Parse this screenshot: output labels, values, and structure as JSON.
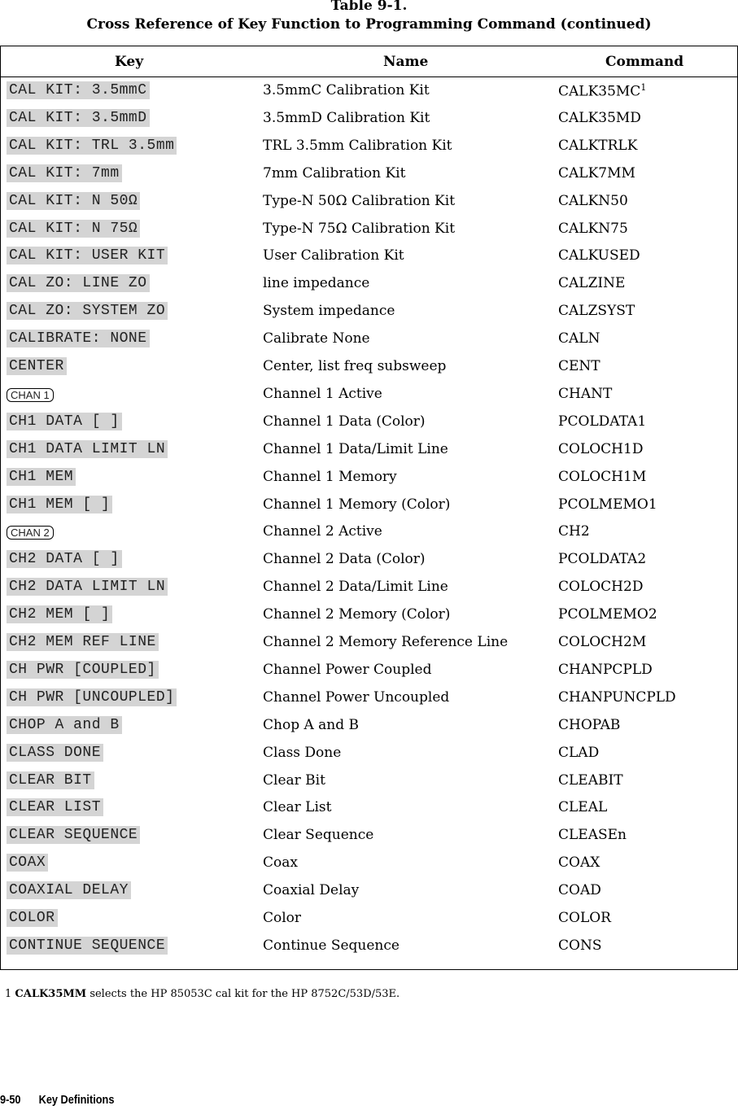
{
  "table": {
    "number": "Table 9-1.",
    "caption": "Cross Reference of Key Function to Programming Command (continued)",
    "headers": {
      "key": "Key",
      "name": "Name",
      "command": "Command"
    },
    "rows": [
      {
        "key": "CAL KIT: 3.5mmC",
        "name": "3.5mmC Calibration Kit",
        "command": "CALK35MC",
        "sup": "1"
      },
      {
        "key": "CAL KIT: 3.5mmD",
        "name": "3.5mmD Calibration Kit",
        "command": "CALK35MD"
      },
      {
        "key": "CAL KIT: TRL 3.5mm",
        "name": "TRL 3.5mm Calibration Kit",
        "command": "CALKTRLK"
      },
      {
        "key": "CAL KIT: 7mm",
        "name": "7mm Calibration Kit",
        "command": "CALK7MM"
      },
      {
        "key": "CAL KIT: N 50Ω",
        "name": "Type-N 50Ω Calibration Kit",
        "command": "CALKN50"
      },
      {
        "key": "CAL KIT: N 75Ω",
        "name": "Type-N 75Ω Calibration Kit",
        "command": "CALKN75"
      },
      {
        "key": "CAL KIT: USER KIT",
        "name": "User Calibration Kit",
        "command": "CALKUSED"
      },
      {
        "key": "CAL ZO: LINE ZO",
        "name": "line impedance",
        "command": "CALZINE"
      },
      {
        "key": "CAL ZO: SYSTEM ZO",
        "name": "System impedance",
        "command": "CALZSYST"
      },
      {
        "key": "CALIBRATE: NONE",
        "name": "Calibrate None",
        "command": "CALN"
      },
      {
        "key": "CENTER",
        "name": "Center, list freq subsweep",
        "command": "CENT"
      },
      {
        "key": "CHAN 1",
        "hard": true,
        "name": "Channel 1 Active",
        "command": "CHANT"
      },
      {
        "key": "CH1 DATA [ ]",
        "name": "Channel 1 Data (Color)",
        "command": "PCOLDATA1"
      },
      {
        "key": "CH1 DATA LIMIT LN",
        "name": "Channel 1 Data/Limit Line",
        "command": "COLOCH1D"
      },
      {
        "key": "CH1 MEM",
        "name": "Channel 1 Memory",
        "command": "COLOCH1M"
      },
      {
        "key": "CH1 MEM [ ]",
        "name": "Channel 1 Memory (Color)",
        "command": "PCOLMEMO1"
      },
      {
        "key": "CHAN 2",
        "hard": true,
        "name": "Channel 2 Active",
        "command": "CH2"
      },
      {
        "key": "CH2 DATA [ ]",
        "name": "Channel 2 Data (Color)",
        "command": "PCOLDATA2"
      },
      {
        "key": "CH2 DATA LIMIT LN",
        "name": "Channel 2 Data/Limit Line",
        "command": "COLOCH2D"
      },
      {
        "key": "CH2 MEM [ ]",
        "name": "Channel 2 Memory (Color)",
        "command": "PCOLMEMO2"
      },
      {
        "key": "CH2 MEM REF LINE",
        "name": "Channel 2 Memory Reference Line",
        "command": "COLOCH2M"
      },
      {
        "key": "CH PWR [COUPLED]",
        "name": "Channel Power Coupled",
        "command": "CHANPCPLD"
      },
      {
        "key": "CH PWR [UNCOUPLED]",
        "name": "Channel Power Uncoupled",
        "command": "CHANPUNCPLD"
      },
      {
        "key": "CHOP A and B",
        "name": "Chop A and B",
        "command": "CHOPAB"
      },
      {
        "key": "CLASS DONE",
        "name": "Class Done",
        "command": "CLAD"
      },
      {
        "key": "CLEAR BIT",
        "name": "Clear Bit",
        "command": "CLEABIT"
      },
      {
        "key": "CLEAR LIST",
        "name": "Clear List",
        "command": "CLEAL"
      },
      {
        "key": "CLEAR SEQUENCE",
        "name": "Clear Sequence",
        "command": "CLEASEn"
      },
      {
        "key": "COAX",
        "name": "Coax",
        "command": "COAX"
      },
      {
        "key": "COAXIAL DELAY",
        "name": "Coaxial Delay",
        "command": "COAD"
      },
      {
        "key": "COLOR",
        "name": "Color",
        "command": "COLOR"
      },
      {
        "key": "CONTINUE SEQUENCE",
        "name": "Continue Sequence",
        "command": "CONS"
      }
    ]
  },
  "footnote": {
    "number": "1",
    "bold": "CALK35MM",
    "text": "selects the HP 85053C cal kit for the HP 8752C/53D/53E."
  },
  "page_footer": {
    "page": "9-50",
    "section": "Key Definitions"
  }
}
